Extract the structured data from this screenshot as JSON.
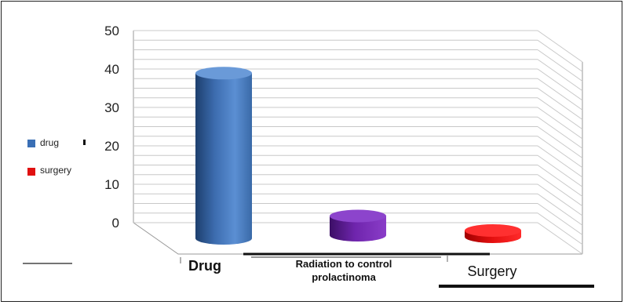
{
  "chart_data": {
    "type": "bar",
    "style": "3d-cylinder",
    "categories": [
      "Drug",
      "Radiation to control prolactinoma",
      "Surgery"
    ],
    "category_lines": [
      [
        "Drug"
      ],
      [
        "Radiation to control",
        "prolactinoma"
      ],
      [
        "Surgery"
      ]
    ],
    "values": [
      43,
      5,
      1
    ],
    "bar_colors": [
      "#4a7fc1",
      "#7a2fb8",
      "#e01010"
    ],
    "ylim": [
      0,
      50
    ],
    "yticks": [
      0,
      10,
      20,
      30,
      40,
      50
    ],
    "grid": true,
    "legend": {
      "placement": "left",
      "entries": [
        {
          "label": "drug",
          "color": "#3a6fb5"
        },
        {
          "label": "surgery",
          "color": "#e01010"
        }
      ]
    }
  }
}
